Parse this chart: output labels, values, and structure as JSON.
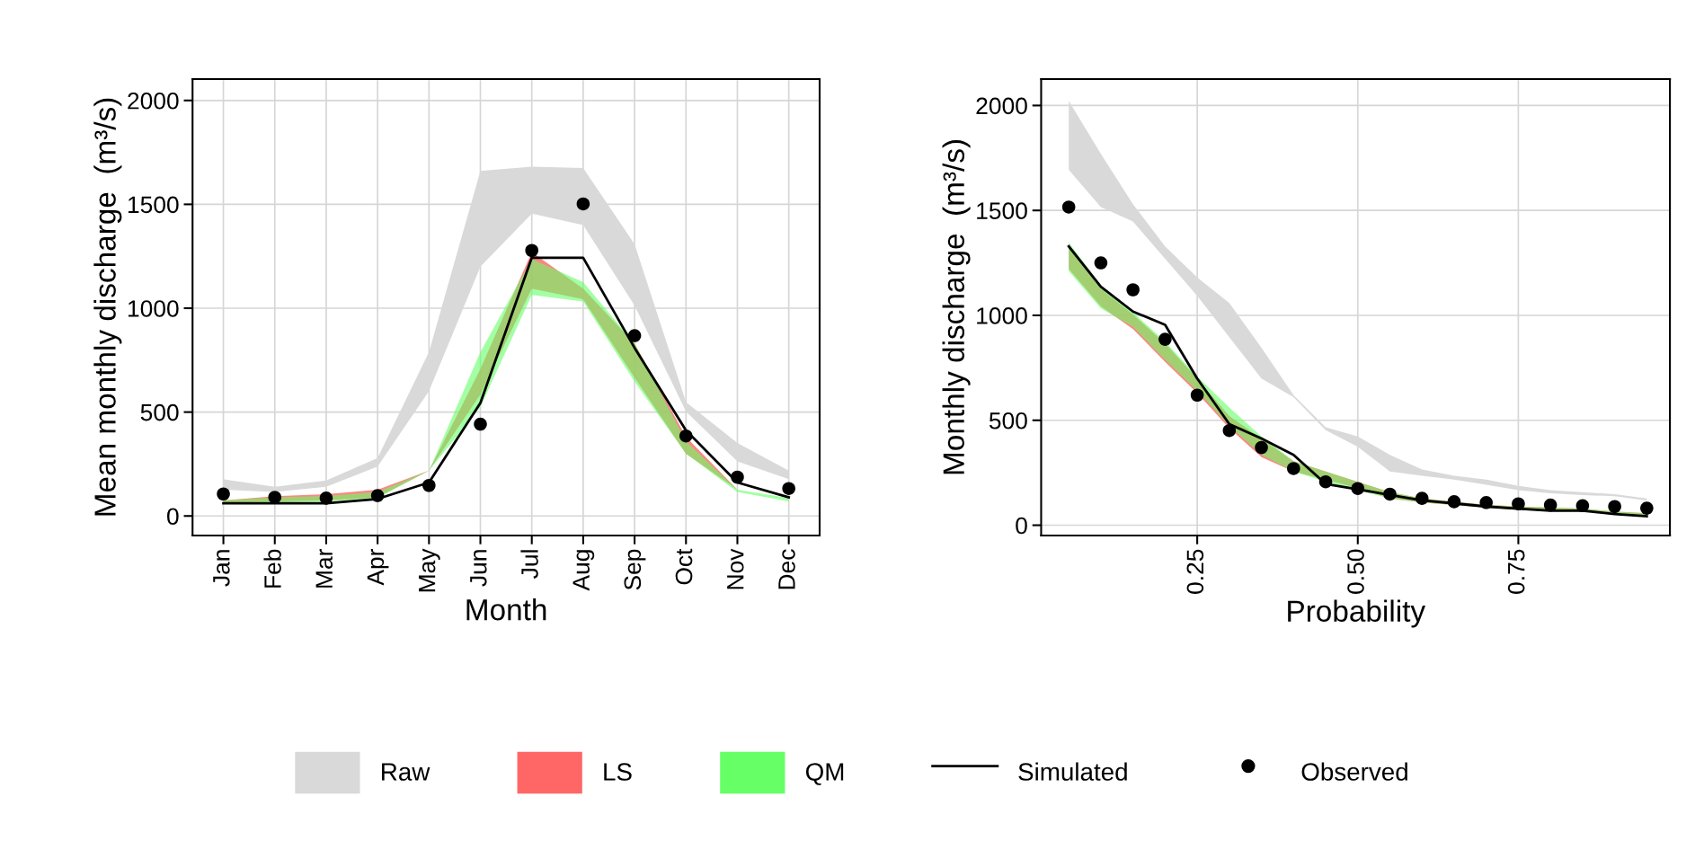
{
  "chart_data": [
    {
      "type": "line",
      "xlabel": "Month",
      "ylabel": "Mean monthly discharge  (m³/s)",
      "categories": [
        "Jan",
        "Feb",
        "Mar",
        "Apr",
        "May",
        "Jun",
        "Jul",
        "Aug",
        "Sep",
        "Oct",
        "Nov",
        "Dec"
      ],
      "ylim": [
        -94,
        2103
      ],
      "yticks": [
        0,
        500,
        1000,
        1500,
        2000
      ],
      "grid": true,
      "legend": "bottom",
      "series": [
        {
          "name": "Raw",
          "color": "#d9d9d9",
          "values": [
            null,
            null,
            null,
            null,
            null,
            null,
            null,
            null,
            null,
            null,
            null,
            null
          ],
          "lower": [
            126,
            116,
            140,
            238,
            601,
            1200,
            1455,
            1400,
            1013,
            503,
            263,
            177
          ],
          "upper": [
            177,
            140,
            171,
            279,
            789,
            1661,
            1681,
            1675,
            1308,
            548,
            351,
            218
          ]
        },
        {
          "name": "LS",
          "color": "#ff6666",
          "values": [
            null,
            null,
            null,
            null,
            null,
            null,
            null,
            null,
            null,
            null,
            null,
            null
          ],
          "lower": [
            65,
            70,
            75,
            90,
            218,
            585,
            1094,
            1043,
            666,
            300,
            126,
            82
          ],
          "upper": [
            75,
            95,
            105,
            126,
            218,
            707,
            1270,
            1094,
            830,
            381,
            126,
            82
          ]
        },
        {
          "name": "QM",
          "color": "#66ff66",
          "values": [
            null,
            null,
            null,
            null,
            null,
            null,
            null,
            null,
            null,
            null,
            null,
            null
          ],
          "lower": [
            59,
            65,
            69,
            86,
            218,
            524,
            1064,
            1033,
            646,
            300,
            116,
            70
          ],
          "upper": [
            75,
            90,
            96,
            116,
            218,
            789,
            1237,
            1125,
            830,
            360,
            126,
            86
          ]
        },
        {
          "name": "Simulated",
          "color": "#000000",
          "line_style": "solid",
          "marker": "none",
          "values": [
            61,
            61,
            61,
            82,
            161,
            544,
            1243,
            1243,
            809,
            412,
            161,
            90
          ]
        },
        {
          "name": "Observed",
          "type": "scatter",
          "color": "#000000",
          "marker": "circle",
          "values": [
            106,
            90,
            86,
            98,
            147,
            442,
            1278,
            1502,
            868,
            385,
            187,
            132
          ]
        }
      ]
    },
    {
      "type": "line",
      "xlabel": "Probability",
      "ylabel": "Monthly discharge  (m³/s)",
      "x": [
        0.05,
        0.1,
        0.15,
        0.2,
        0.25,
        0.3,
        0.35,
        0.4,
        0.45,
        0.5,
        0.55,
        0.6,
        0.65,
        0.7,
        0.75,
        0.8,
        0.85,
        0.9,
        0.95
      ],
      "xlim": [
        0.007,
        0.986
      ],
      "xticks": [
        {
          "value": 0.25,
          "label": "0.25"
        },
        {
          "value": 0.5,
          "label": "0.50"
        },
        {
          "value": 0.75,
          "label": "0.75"
        }
      ],
      "ylim": [
        -49,
        2126
      ],
      "yticks": [
        0,
        500,
        1000,
        1500,
        2000
      ],
      "grid": true,
      "series": [
        {
          "color": "#d9d9d9",
          "values": [
            null,
            null,
            null,
            null,
            null,
            null,
            null,
            null,
            null,
            null,
            null,
            null,
            null,
            null,
            null,
            null,
            null,
            null,
            null
          ],
          "lower": [
            1693,
            1516,
            1447,
            1270,
            1093,
            896,
            699,
            610,
            453,
            374,
            256,
            236,
            217,
            193,
            167,
            152,
            144,
            138,
            118
          ],
          "upper": [
            2022,
            1770,
            1530,
            1329,
            1181,
            1059,
            846,
            620,
            467,
            423,
            335,
            266,
            236,
            217,
            187,
            167,
            157,
            148,
            128
          ]
        },
        {
          "color": "#ff6666",
          "values": [
            null,
            null,
            null,
            null,
            null,
            null,
            null,
            null,
            null,
            null,
            null,
            null,
            null,
            null,
            null,
            null,
            null,
            null,
            null
          ],
          "lower": [
            1221,
            1043,
            935,
            778,
            630,
            463,
            325,
            256,
            217,
            177,
            128,
            108,
            96,
            85,
            73,
            69,
            65,
            53,
            45
          ],
          "upper": [
            1329,
            1126,
            1004,
            866,
            699,
            520,
            413,
            305,
            256,
            207,
            157,
            128,
            112,
            98,
            89,
            85,
            79,
            65,
            57
          ]
        },
        {
          "color": "#66ff66",
          "values": [
            null,
            null,
            null,
            null,
            null,
            null,
            null,
            null,
            null,
            null,
            null,
            null,
            null,
            null,
            null,
            null,
            null,
            null,
            null
          ],
          "lower": [
            1211,
            1033,
            945,
            788,
            640,
            473,
            335,
            256,
            207,
            167,
            128,
            108,
            96,
            85,
            73,
            69,
            65,
            53,
            45
          ],
          "upper": [
            1348,
            1142,
            1014,
            876,
            709,
            561,
            423,
            305,
            256,
            207,
            157,
            128,
            112,
            98,
            89,
            85,
            79,
            65,
            57
          ]
        },
        {
          "color": "#000000",
          "line_style": "solid",
          "marker": "none",
          "values": [
            1329,
            1136,
            1018,
            955,
            699,
            482,
            413,
            335,
            197,
            171,
            144,
            118,
            104,
            89,
            79,
            69,
            69,
            53,
            43
          ]
        },
        {
          "type": "scatter",
          "color": "#000000",
          "marker": "circle",
          "values": [
            1516,
            1250,
            1122,
            886,
            620,
            451,
            370,
            270,
            207,
            175,
            148,
            128,
            112,
            108,
            102,
            96,
            93,
            89,
            81
          ]
        }
      ]
    }
  ]
}
